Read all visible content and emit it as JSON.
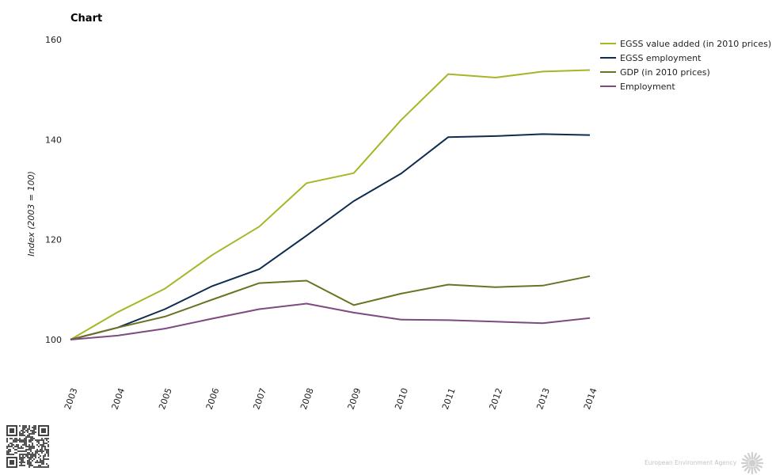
{
  "title": "Chart",
  "chart_data": {
    "type": "line",
    "title": "Chart",
    "xlabel": "",
    "ylabel": "Index (2003 = 100)",
    "x": [
      "2003",
      "2004",
      "2005",
      "2006",
      "2007",
      "2008",
      "2009",
      "2010",
      "2011",
      "2012",
      "2013",
      "2014"
    ],
    "yticks": [
      100,
      120,
      140,
      160
    ],
    "ylim": [
      100,
      160
    ],
    "grid": false,
    "legend_position": "top-right",
    "series": [
      {
        "name": "EGSS value added (in 2010 prices)",
        "color": "#a8b526",
        "values": [
          100,
          105.5,
          110.2,
          116.9,
          122.6,
          131.3,
          133.3,
          143.9,
          153.1,
          152.4,
          153.6,
          153.9
        ]
      },
      {
        "name": "EGSS employment",
        "color": "#0d2c4e",
        "values": [
          100,
          102.4,
          106.1,
          110.7,
          114.1,
          120.8,
          127.7,
          133.2,
          140.5,
          140.7,
          141.1,
          140.9
        ]
      },
      {
        "name": "GDP (in 2010 prices)",
        "color": "#6b7223",
        "values": [
          100,
          102.4,
          104.6,
          108,
          111.3,
          111.8,
          106.9,
          109.2,
          111,
          110.5,
          110.8,
          112.7
        ]
      },
      {
        "name": "Employment",
        "color": "#7e4a80",
        "values": [
          100,
          100.8,
          102.2,
          104.2,
          106.1,
          107.2,
          105.4,
          104,
          103.9,
          103.6,
          103.3,
          104.3
        ]
      }
    ]
  },
  "footer": {
    "brand": "European Environment Agency",
    "icons": [
      "qr-code-icon",
      "eea-sun-logo-icon"
    ]
  }
}
